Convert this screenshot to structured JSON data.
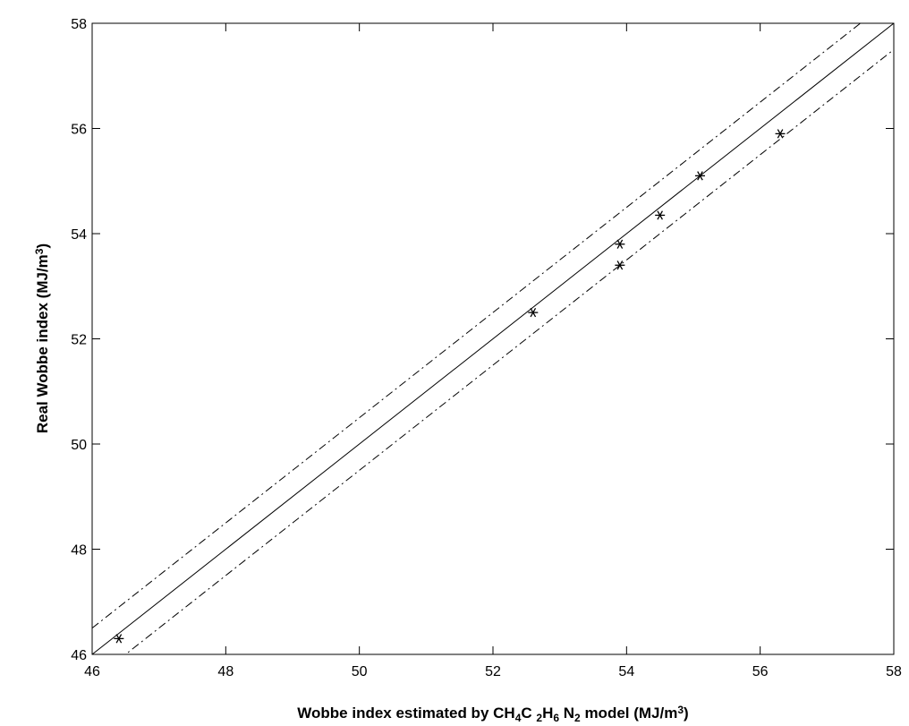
{
  "chart_data": {
    "type": "scatter",
    "title": "",
    "xlabel": {
      "parts": [
        {
          "text": "Wobbe index estimated by CH",
          "style": "normal"
        },
        {
          "text": "4",
          "style": "sub"
        },
        {
          "text": "C ",
          "style": "normal"
        },
        {
          "text": "2",
          "style": "sub"
        },
        {
          "text": "H",
          "style": "normal"
        },
        {
          "text": "6",
          "style": "sub"
        },
        {
          "text": " N",
          "style": "normal"
        },
        {
          "text": "2",
          "style": "sub"
        },
        {
          "text": " model (MJ/m",
          "style": "normal"
        },
        {
          "text": "3",
          "style": "sup"
        },
        {
          "text": ")",
          "style": "normal"
        }
      ]
    },
    "ylabel": {
      "parts": [
        {
          "text": "Real Wobbe index (MJ/m",
          "style": "normal"
        },
        {
          "text": "3",
          "style": "sup"
        },
        {
          "text": ")",
          "style": "normal"
        }
      ]
    },
    "xlim": [
      46,
      58
    ],
    "ylim": [
      46,
      58
    ],
    "xticks": [
      46,
      48,
      50,
      52,
      54,
      56,
      58
    ],
    "yticks": [
      46,
      48,
      50,
      52,
      54,
      56,
      58
    ],
    "grid": false,
    "legend": "none",
    "series": [
      {
        "marker": "asterisk",
        "color": "#000000",
        "points": [
          {
            "x": 46.4,
            "y": 46.3
          },
          {
            "x": 52.6,
            "y": 52.5
          },
          {
            "x": 53.9,
            "y": 53.8
          },
          {
            "x": 53.9,
            "y": 53.4
          },
          {
            "x": 54.5,
            "y": 54.35
          },
          {
            "x": 55.1,
            "y": 55.1
          },
          {
            "x": 56.3,
            "y": 55.9
          }
        ]
      }
    ],
    "reference_lines": [
      {
        "style": "solid",
        "slope": 1,
        "intercept": 0,
        "color": "#000000"
      },
      {
        "style": "dashdot",
        "slope": 1,
        "intercept": 0.5,
        "color": "#000000"
      },
      {
        "style": "dashdot",
        "slope": 1,
        "intercept": -0.5,
        "color": "#000000"
      }
    ]
  }
}
